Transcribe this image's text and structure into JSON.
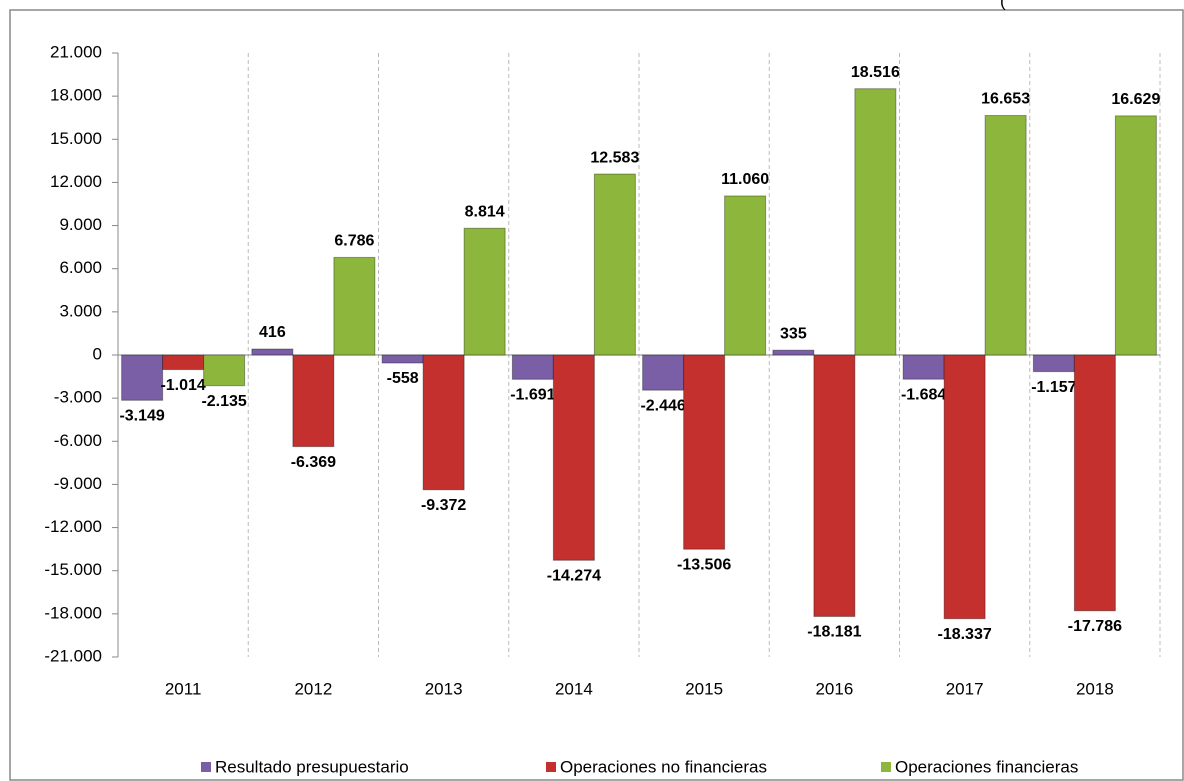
{
  "chart_data": {
    "type": "bar",
    "note": "(",
    "categories": [
      "2011",
      "2012",
      "2013",
      "2014",
      "2015",
      "2016",
      "2017",
      "2018"
    ],
    "series": [
      {
        "name": "Resultado presupuestario",
        "color": "#7a5fa6",
        "values": [
          -3149,
          416,
          -558,
          -1691,
          -2446,
          335,
          -1684,
          -1157
        ],
        "value_labels": [
          "-3.149",
          "416",
          "-558",
          "-1.691",
          "-2.446",
          "335",
          "-1.684",
          "-1.157"
        ]
      },
      {
        "name": "Operaciones no financieras",
        "color": "#c3302d",
        "values": [
          -1014,
          -6369,
          -9372,
          -14274,
          -13506,
          -18181,
          -18337,
          -17786
        ],
        "value_labels": [
          "-1.014",
          "-6.369",
          "-9.372",
          "-14.274",
          "-13.506",
          "-18.181",
          "-18.337",
          "-17.786"
        ]
      },
      {
        "name": "Operaciones financieras",
        "color": "#8db63c",
        "values": [
          -2135,
          6786,
          8814,
          12583,
          11060,
          18516,
          16653,
          16629
        ],
        "value_labels": [
          "-2.135",
          "6.786",
          "8.814",
          "12.583",
          "11.060",
          "18.516",
          "16.653",
          "16.629"
        ]
      }
    ],
    "ylim": [
      -21000,
      21000
    ],
    "yticks": [
      {
        "value": -21000,
        "label": "-21.000"
      },
      {
        "value": -18000,
        "label": "-18.000"
      },
      {
        "value": -15000,
        "label": "-15.000"
      },
      {
        "value": -12000,
        "label": "-12.000"
      },
      {
        "value": -9000,
        "label": "-9.000"
      },
      {
        "value": -6000,
        "label": "-6.000"
      },
      {
        "value": -3000,
        "label": "-3.000"
      },
      0,
      {
        "value": 3000,
        "label": "3.000"
      },
      {
        "value": 6000,
        "label": "6.000"
      },
      {
        "value": 9000,
        "label": "9.000"
      },
      {
        "value": 12000,
        "label": "12.000"
      },
      {
        "value": 15000,
        "label": "15.000"
      },
      {
        "value": 18000,
        "label": "18.000"
      },
      {
        "value": 21000,
        "label": "21.000"
      }
    ],
    "grid": true,
    "legend": "bottom"
  }
}
